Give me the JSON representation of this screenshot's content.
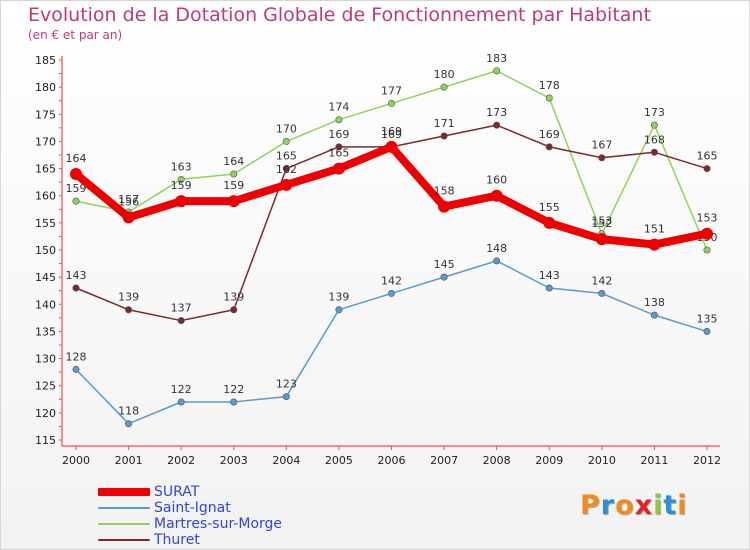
{
  "header": {
    "title": "Evolution de la Dotation Globale de Fonctionnement par Habitant",
    "subtitle": "(en € et par an)"
  },
  "logo": {
    "letters": [
      "P",
      "r",
      "o",
      "x",
      "i",
      "t",
      "i"
    ],
    "colors": [
      "#f28b1f",
      "#2a8fd8",
      "#f28b1f",
      "#e8202a",
      "#8cc63f",
      "#2a8fd8",
      "#f28b1f"
    ]
  },
  "chart_data": {
    "type": "line",
    "x": [
      "2000",
      "2001",
      "2002",
      "2003",
      "2004",
      "2005",
      "2006",
      "2007",
      "2008",
      "2009",
      "2010",
      "2011",
      "2012"
    ],
    "ylim": [
      115,
      185
    ],
    "yticks": [
      115,
      120,
      125,
      130,
      135,
      140,
      145,
      150,
      155,
      160,
      165,
      170,
      175,
      180,
      185
    ],
    "grid": false,
    "legend_position": "bottom-left",
    "series": [
      {
        "name": "Martres-sur-Morge",
        "color": "#8fd45a",
        "values": [
          159,
          157,
          163,
          164,
          170,
          174,
          177,
          180,
          183,
          178,
          153,
          173,
          150
        ]
      },
      {
        "name": "Thuret",
        "color": "#7a2a2a",
        "values": [
          143,
          139,
          137,
          139,
          165,
          169,
          169,
          171,
          173,
          169,
          167,
          168,
          165
        ]
      },
      {
        "name": "Saint-Ignat",
        "color": "#5a9ad0",
        "values": [
          128,
          118,
          122,
          122,
          123,
          139,
          142,
          145,
          148,
          143,
          142,
          138,
          135
        ]
      },
      {
        "name": "SURAT",
        "color": "#ee0000",
        "values": [
          164,
          156,
          159,
          159,
          162,
          165,
          169,
          158,
          160,
          155,
          152,
          151,
          153
        ]
      }
    ]
  },
  "legend": [
    {
      "name": "SURAT",
      "color": "#ee0000",
      "thickness": 8
    },
    {
      "name": "Saint-Ignat",
      "color": "#5a9ad0",
      "thickness": 2
    },
    {
      "name": "Martres-sur-Morge",
      "color": "#8fd45a",
      "thickness": 2
    },
    {
      "name": "Thuret",
      "color": "#7a2a2a",
      "thickness": 2
    }
  ]
}
